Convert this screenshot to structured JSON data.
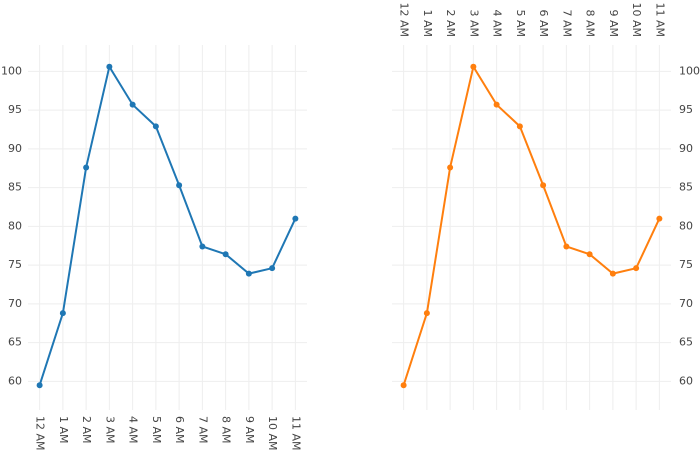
{
  "chart_data": [
    {
      "type": "line",
      "categories": [
        "12 AM",
        "1 AM",
        "2 AM",
        "3 AM",
        "4 AM",
        "5 AM",
        "6 AM",
        "7 AM",
        "8 AM",
        "9 AM",
        "10 AM",
        "11 AM"
      ],
      "values": [
        59.5,
        68.8,
        87.6,
        100.6,
        95.7,
        92.9,
        85.3,
        77.4,
        76.4,
        73.9,
        74.6,
        81.0
      ],
      "color": "#1f77b4",
      "ylim": [
        56.3,
        103.4
      ],
      "yticks": [
        60,
        65,
        70,
        75,
        80,
        85,
        90,
        95,
        100
      ],
      "grid": true,
      "x_axis_side": "bottom",
      "y_axis_side": "left"
    },
    {
      "type": "line",
      "categories": [
        "12 AM",
        "1 AM",
        "2 AM",
        "3 AM",
        "4 AM",
        "5 AM",
        "6 AM",
        "7 AM",
        "8 AM",
        "9 AM",
        "10 AM",
        "11 AM"
      ],
      "values": [
        59.5,
        68.8,
        87.6,
        100.6,
        95.7,
        92.9,
        85.3,
        77.4,
        76.4,
        73.9,
        74.6,
        81.0
      ],
      "color": "#ff7f0e",
      "ylim": [
        56.3,
        103.4
      ],
      "yticks": [
        60,
        65,
        70,
        75,
        80,
        85,
        90,
        95,
        100
      ],
      "grid": true,
      "x_axis_side": "top",
      "y_axis_side": "right"
    }
  ]
}
